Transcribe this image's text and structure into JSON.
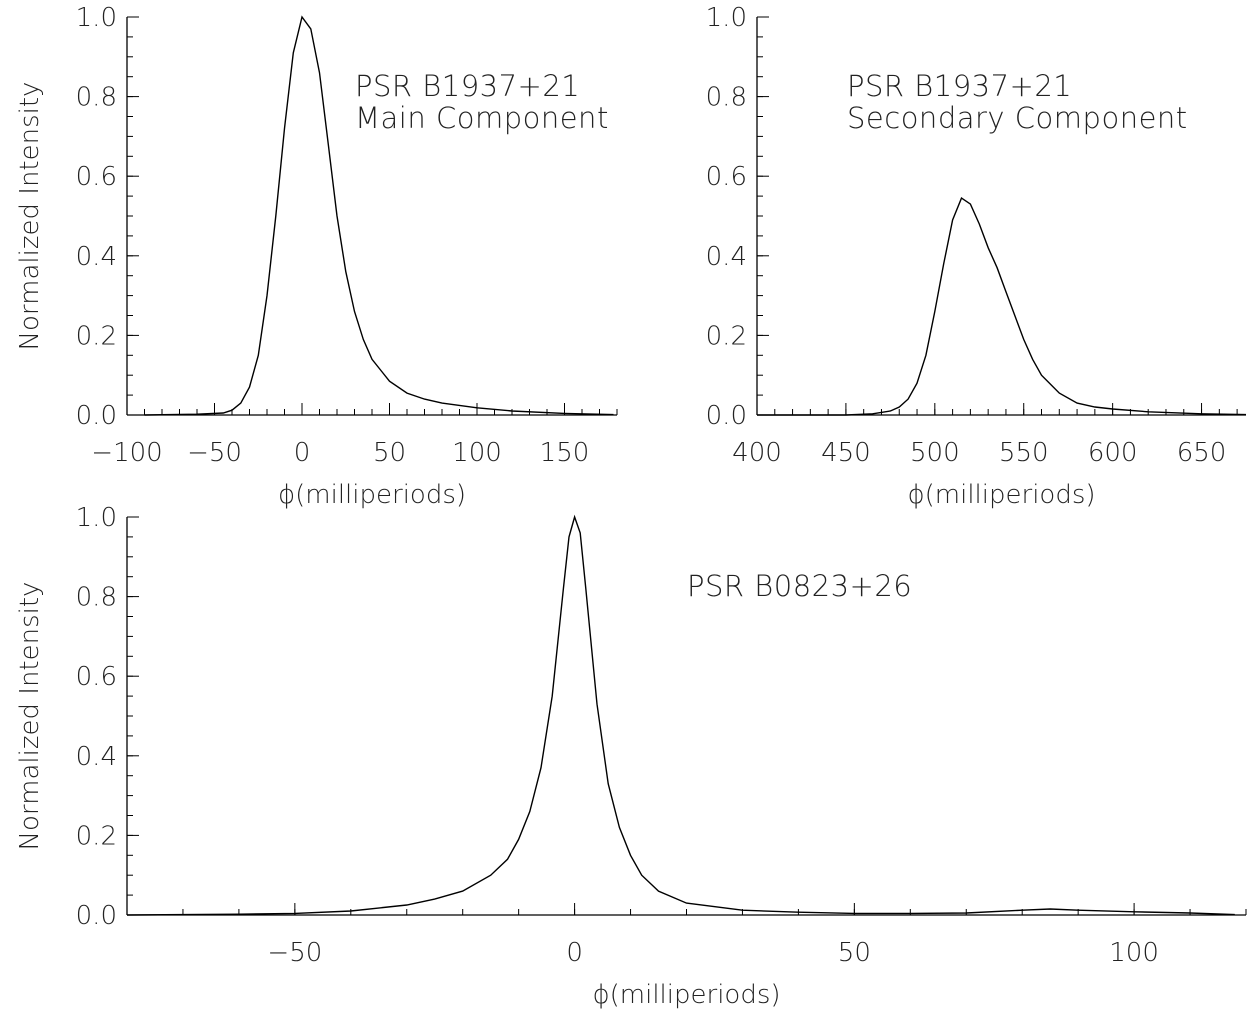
{
  "chart_data": [
    {
      "type": "line",
      "title": "",
      "annotations": [
        "PSR B1937+21",
        "Main Component"
      ],
      "xlabel": "ϕ(milliperiods)",
      "ylabel": "Normalized Intensity",
      "xlim": [
        -100,
        180
      ],
      "ylim": [
        0,
        1.0
      ],
      "xticks": [
        -100,
        -50,
        0,
        50,
        100,
        150
      ],
      "xtick_labels": [
        "−100",
        "−50",
        "0",
        "50",
        "100",
        "150"
      ],
      "yticks": [
        0.0,
        0.2,
        0.4,
        0.6,
        0.8,
        1.0
      ],
      "ytick_labels": [
        "0.0",
        "0.2",
        "0.4",
        "0.6",
        "0.8",
        "1.0"
      ],
      "grid": false,
      "series": [
        {
          "x": [
            -90,
            -60,
            -45,
            -40,
            -35,
            -30,
            -25,
            -20,
            -15,
            -10,
            -5,
            0,
            5,
            10,
            15,
            20,
            25,
            30,
            35,
            40,
            50,
            60,
            70,
            80,
            100,
            120,
            150,
            178
          ],
          "values": [
            0.0,
            0.002,
            0.005,
            0.012,
            0.03,
            0.07,
            0.15,
            0.3,
            0.5,
            0.72,
            0.91,
            1.0,
            0.97,
            0.86,
            0.68,
            0.5,
            0.36,
            0.26,
            0.19,
            0.14,
            0.085,
            0.055,
            0.04,
            0.03,
            0.018,
            0.01,
            0.004,
            0.001
          ]
        }
      ]
    },
    {
      "type": "line",
      "title": "",
      "annotations": [
        "PSR B1937+21",
        "Secondary Component"
      ],
      "xlabel": "ϕ(milliperiods)",
      "ylabel": "",
      "xlim": [
        400,
        675
      ],
      "ylim": [
        0,
        1.0
      ],
      "xticks": [
        400,
        450,
        500,
        550,
        600,
        650
      ],
      "xtick_labels": [
        "400",
        "450",
        "500",
        "550",
        "600",
        "650"
      ],
      "yticks": [
        0.0,
        0.2,
        0.4,
        0.6,
        0.8,
        1.0
      ],
      "ytick_labels": [
        "0.0",
        "0.2",
        "0.4",
        "0.6",
        "0.8",
        "1.0"
      ],
      "grid": false,
      "series": [
        {
          "x": [
            400,
            450,
            465,
            475,
            480,
            485,
            490,
            495,
            500,
            505,
            510,
            515,
            520,
            525,
            530,
            535,
            540,
            545,
            550,
            555,
            560,
            570,
            580,
            590,
            600,
            620,
            650,
            675
          ],
          "values": [
            0.0,
            0.0,
            0.003,
            0.01,
            0.02,
            0.04,
            0.08,
            0.15,
            0.26,
            0.38,
            0.49,
            0.545,
            0.53,
            0.48,
            0.42,
            0.37,
            0.31,
            0.25,
            0.19,
            0.14,
            0.1,
            0.055,
            0.03,
            0.02,
            0.015,
            0.008,
            0.003,
            0.001
          ]
        }
      ]
    },
    {
      "type": "line",
      "title": "",
      "annotations": [
        "PSR B0823+26"
      ],
      "xlabel": "ϕ(milliperiods)",
      "ylabel": "Normalized Intensity",
      "xlim": [
        -80,
        120
      ],
      "ylim": [
        0,
        1.0
      ],
      "xticks": [
        -50,
        0,
        50,
        100
      ],
      "xtick_labels": [
        "−50",
        "0",
        "50",
        "100"
      ],
      "yticks": [
        0.0,
        0.2,
        0.4,
        0.6,
        0.8,
        1.0
      ],
      "ytick_labels": [
        "0.0",
        "0.2",
        "0.4",
        "0.6",
        "0.8",
        "1.0"
      ],
      "grid": false,
      "series": [
        {
          "x": [
            -80,
            -60,
            -50,
            -40,
            -30,
            -25,
            -20,
            -15,
            -12,
            -10,
            -8,
            -6,
            -4,
            -2,
            -1,
            0,
            1,
            2,
            4,
            6,
            8,
            10,
            12,
            15,
            20,
            30,
            40,
            50,
            60,
            70,
            80,
            85,
            90,
            100,
            110,
            118
          ],
          "values": [
            0.0,
            0.002,
            0.004,
            0.01,
            0.025,
            0.04,
            0.06,
            0.1,
            0.14,
            0.19,
            0.26,
            0.37,
            0.55,
            0.82,
            0.95,
            1.0,
            0.96,
            0.82,
            0.53,
            0.33,
            0.22,
            0.15,
            0.1,
            0.06,
            0.03,
            0.012,
            0.007,
            0.004,
            0.004,
            0.005,
            0.012,
            0.015,
            0.012,
            0.008,
            0.005,
            0.001
          ]
        }
      ]
    }
  ]
}
